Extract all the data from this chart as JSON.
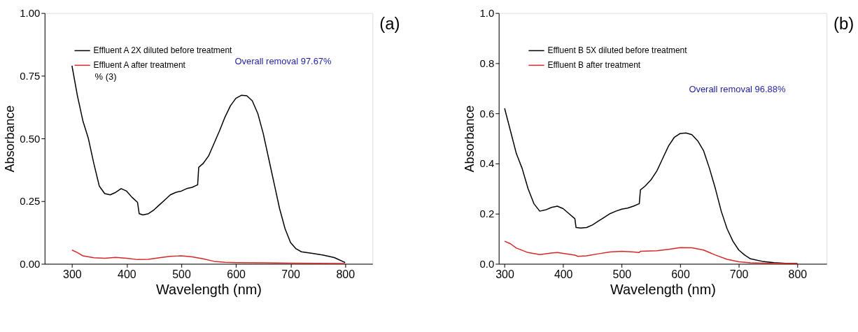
{
  "chart_data": [
    {
      "type": "line",
      "xlabel": "Wavelength (nm)",
      "ylabel": "Absorbance",
      "xlim": [
        250,
        850
      ],
      "xticks": [
        300,
        400,
        500,
        600,
        700,
        800
      ],
      "ylim": [
        0,
        1
      ],
      "yticks": [
        {
          "value": 0,
          "label": "0.00"
        },
        {
          "value": 0.25,
          "label": "0.25"
        },
        {
          "value": 0.5,
          "label": "0.50"
        },
        {
          "value": 0.75,
          "label": "0.75"
        },
        {
          "value": 1,
          "label": "1.00"
        }
      ],
      "grid": false,
      "legend": "top left",
      "marker": "none",
      "line_style": "solid",
      "annotations": [
        "% (3)",
        "Overall removal 97.67%",
        "(a)"
      ],
      "series": [
        {
          "name": "Effluent A 2X diluted before treatment",
          "color": "#000000",
          "x": [
            300,
            310,
            320,
            330,
            340,
            350,
            360,
            370,
            380,
            390,
            400,
            410,
            420,
            423,
            430,
            440,
            450,
            460,
            470,
            480,
            490,
            500,
            510,
            520,
            530,
            532,
            540,
            550,
            560,
            570,
            580,
            590,
            600,
            610,
            620,
            630,
            640,
            650,
            660,
            670,
            680,
            690,
            700,
            710,
            720,
            740,
            760,
            780,
            800
          ],
          "values": [
            0.79,
            0.67,
            0.57,
            0.5,
            0.4,
            0.31,
            0.28,
            0.275,
            0.285,
            0.3,
            0.29,
            0.265,
            0.245,
            0.2,
            0.195,
            0.2,
            0.215,
            0.235,
            0.255,
            0.275,
            0.285,
            0.29,
            0.3,
            0.305,
            0.315,
            0.385,
            0.4,
            0.43,
            0.48,
            0.53,
            0.585,
            0.63,
            0.66,
            0.672,
            0.67,
            0.65,
            0.6,
            0.52,
            0.42,
            0.32,
            0.22,
            0.14,
            0.085,
            0.06,
            0.048,
            0.042,
            0.035,
            0.025,
            0.005
          ]
        },
        {
          "name": "Effluent A after treatment",
          "color": "#d62728",
          "x": [
            300,
            310,
            320,
            340,
            360,
            380,
            400,
            420,
            440,
            460,
            480,
            500,
            520,
            540,
            560,
            580,
            600,
            650,
            700,
            750,
            800
          ],
          "values": [
            0.055,
            0.045,
            0.032,
            0.024,
            0.022,
            0.026,
            0.022,
            0.017,
            0.018,
            0.024,
            0.03,
            0.032,
            0.028,
            0.02,
            0.01,
            0.006,
            0.005,
            0.004,
            0.003,
            0.002,
            0.001
          ]
        }
      ]
    },
    {
      "type": "line",
      "xlabel": "Wavelength (nm)",
      "ylabel": "Absorbance",
      "xlim": [
        290,
        850
      ],
      "xticks": [
        300,
        400,
        500,
        600,
        700,
        800
      ],
      "ylim": [
        0,
        1
      ],
      "yticks": [
        {
          "value": 0,
          "label": "0.0"
        },
        {
          "value": 0.2,
          "label": "0.2"
        },
        {
          "value": 0.4,
          "label": "0.4"
        },
        {
          "value": 0.6,
          "label": "0.6"
        },
        {
          "value": 0.8,
          "label": "0.8"
        },
        {
          "value": 1,
          "label": "1.0"
        }
      ],
      "grid": false,
      "legend": "top left",
      "marker": "none",
      "line_style": "solid",
      "annotations": [
        "Overall removal 96.88%",
        "(b)"
      ],
      "series": [
        {
          "name": "Effluent B 5X diluted before treatment",
          "color": "#000000",
          "x": [
            300,
            310,
            320,
            330,
            340,
            350,
            360,
            370,
            380,
            390,
            400,
            410,
            420,
            422,
            430,
            440,
            450,
            460,
            470,
            480,
            490,
            500,
            510,
            520,
            530,
            532,
            540,
            550,
            560,
            570,
            580,
            590,
            600,
            610,
            620,
            630,
            640,
            650,
            660,
            670,
            680,
            690,
            700,
            710,
            720,
            740,
            760,
            780,
            800
          ],
          "values": [
            0.62,
            0.53,
            0.44,
            0.38,
            0.3,
            0.24,
            0.21,
            0.215,
            0.225,
            0.23,
            0.22,
            0.2,
            0.18,
            0.145,
            0.143,
            0.145,
            0.155,
            0.17,
            0.185,
            0.2,
            0.21,
            0.218,
            0.222,
            0.23,
            0.24,
            0.295,
            0.31,
            0.335,
            0.37,
            0.42,
            0.47,
            0.505,
            0.52,
            0.522,
            0.515,
            0.49,
            0.45,
            0.38,
            0.3,
            0.21,
            0.14,
            0.09,
            0.055,
            0.035,
            0.02,
            0.01,
            0.005,
            0.002,
            0.001
          ]
        },
        {
          "name": "Effluent B after treatment",
          "color": "#d62728",
          "x": [
            300,
            310,
            320,
            340,
            360,
            380,
            390,
            400,
            420,
            425,
            440,
            460,
            480,
            500,
            520,
            530,
            532,
            560,
            580,
            600,
            620,
            640,
            660,
            680,
            700,
            720,
            750,
            800
          ],
          "values": [
            0.09,
            0.08,
            0.063,
            0.045,
            0.037,
            0.043,
            0.045,
            0.042,
            0.035,
            0.03,
            0.032,
            0.04,
            0.047,
            0.05,
            0.047,
            0.045,
            0.05,
            0.052,
            0.058,
            0.065,
            0.064,
            0.055,
            0.035,
            0.018,
            0.008,
            0.004,
            0.002,
            0.001
          ]
        }
      ]
    }
  ]
}
